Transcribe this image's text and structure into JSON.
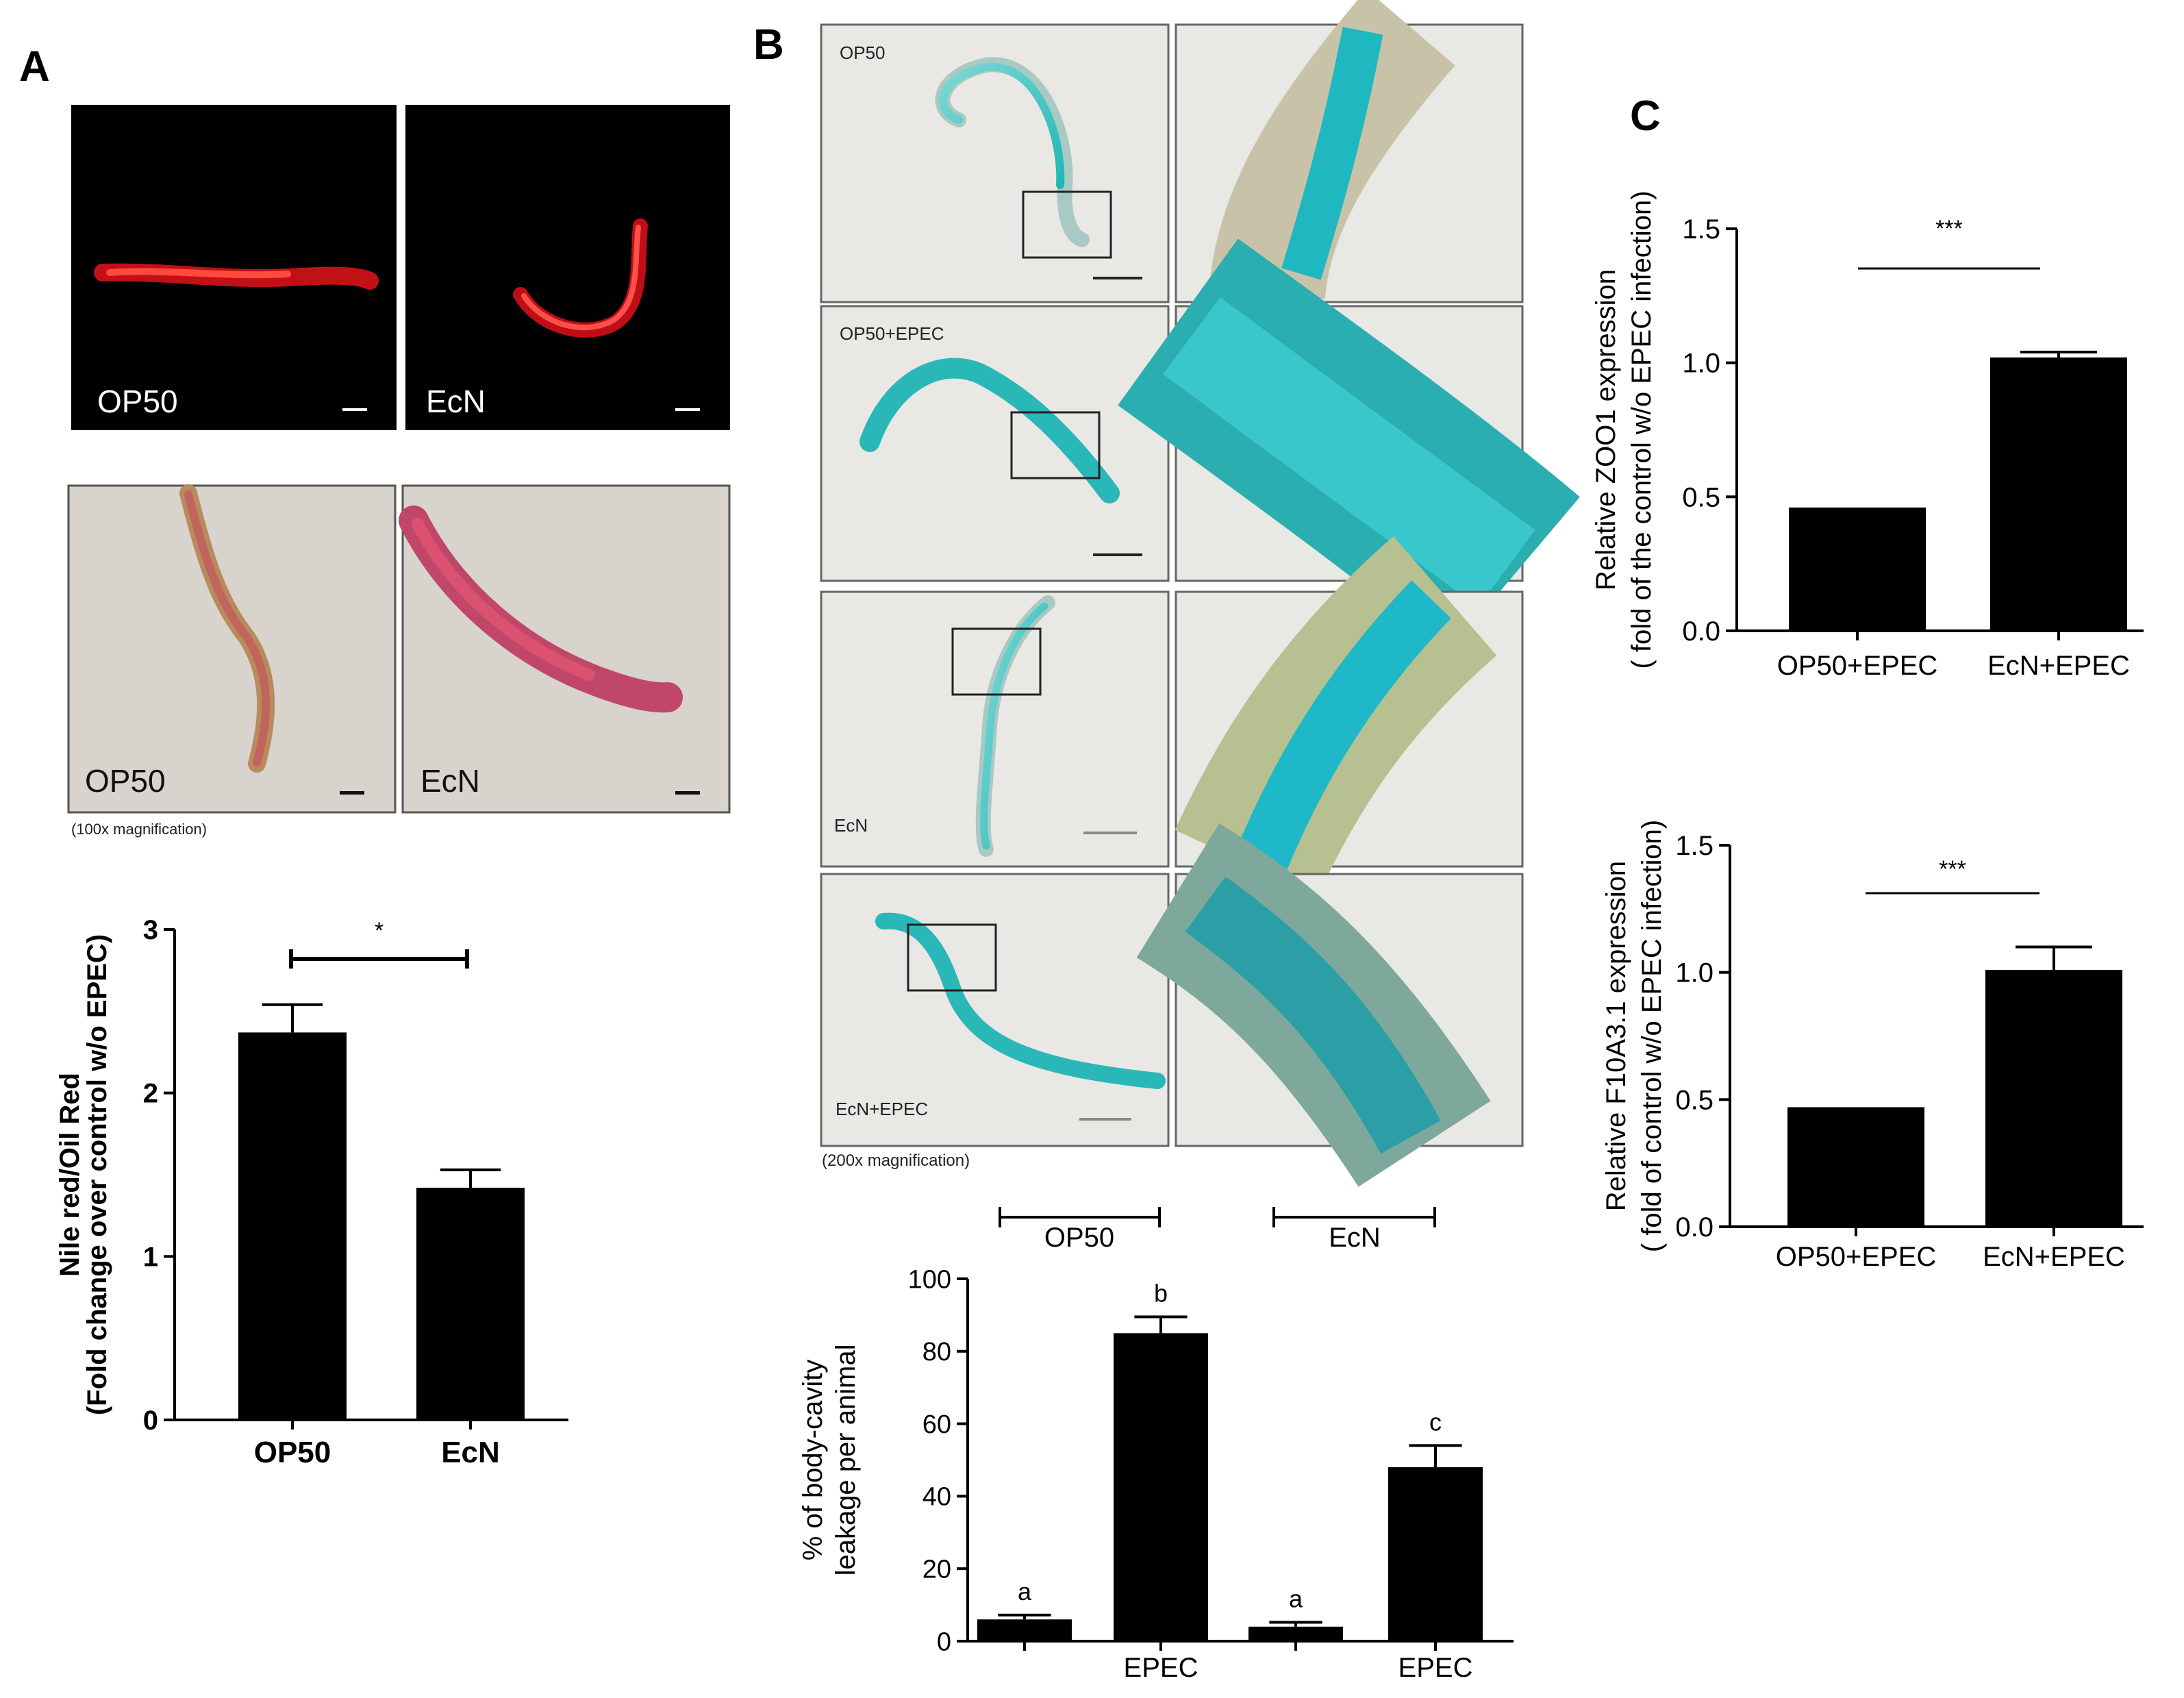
{
  "panels": {
    "A": {
      "letter": "A",
      "fluor_labels": [
        "OP50",
        "EcN"
      ],
      "bright_labels": [
        "OP50",
        "EcN"
      ],
      "magnification": "(100x magnification)"
    },
    "B": {
      "letter": "B",
      "row_labels": [
        "OP50",
        "OP50+EPEC",
        "EcN",
        "EcN+EPEC"
      ],
      "magnification": "(200x magnification)",
      "group_labels": [
        "OP50",
        "EcN"
      ]
    },
    "C": {
      "letter": "C"
    }
  },
  "chart_data": [
    {
      "id": "A-nile-red",
      "type": "bar",
      "categories": [
        "OP50",
        "EcN"
      ],
      "values": [
        2.37,
        1.42
      ],
      "errors": [
        0.17,
        0.11
      ],
      "ylabel": [
        "Nile red/Oil Red",
        "(Fold change over control w/o EPEC)"
      ],
      "ylim": [
        0,
        3
      ],
      "yticks": [
        "0",
        "1",
        "2",
        "3"
      ],
      "significance": "*"
    },
    {
      "id": "B-leakage",
      "type": "bar",
      "categories": [
        "",
        "EPEC",
        "",
        "EPEC"
      ],
      "values": [
        6,
        85,
        4,
        48
      ],
      "errors": [
        1.2,
        4.5,
        1.2,
        6
      ],
      "letters": [
        "a",
        "b",
        "a",
        "c"
      ],
      "ylabel": [
        "% of body-cavity",
        "leakage per animal"
      ],
      "ylim": [
        0,
        100
      ],
      "yticks": [
        "0",
        "20",
        "40",
        "60",
        "80",
        "100"
      ]
    },
    {
      "id": "C-zoo1",
      "type": "bar",
      "categories": [
        "OP50+EPEC",
        "EcN+EPEC"
      ],
      "values": [
        0.46,
        1.02
      ],
      "errors": [
        0,
        0.02
      ],
      "ylabel": [
        "Relative ZOO1 expression",
        "( fold of the control w/o EPEC infection)"
      ],
      "ylim": [
        0,
        1.5
      ],
      "yticks": [
        "0.0",
        "0.5",
        "1.0",
        "1.5"
      ],
      "significance": "***"
    },
    {
      "id": "C-f10a3",
      "type": "bar",
      "categories": [
        "OP50+EPEC",
        "EcN+EPEC"
      ],
      "values": [
        0.47,
        1.01
      ],
      "errors": [
        0,
        0.09
      ],
      "ylabel": [
        "Relative F10A3.1 expression",
        "( fold of control w/o EPEC infection)"
      ],
      "ylim": [
        0,
        1.5
      ],
      "yticks": [
        "0.0",
        "0.5",
        "1.0",
        "1.5"
      ],
      "significance": "***"
    }
  ]
}
